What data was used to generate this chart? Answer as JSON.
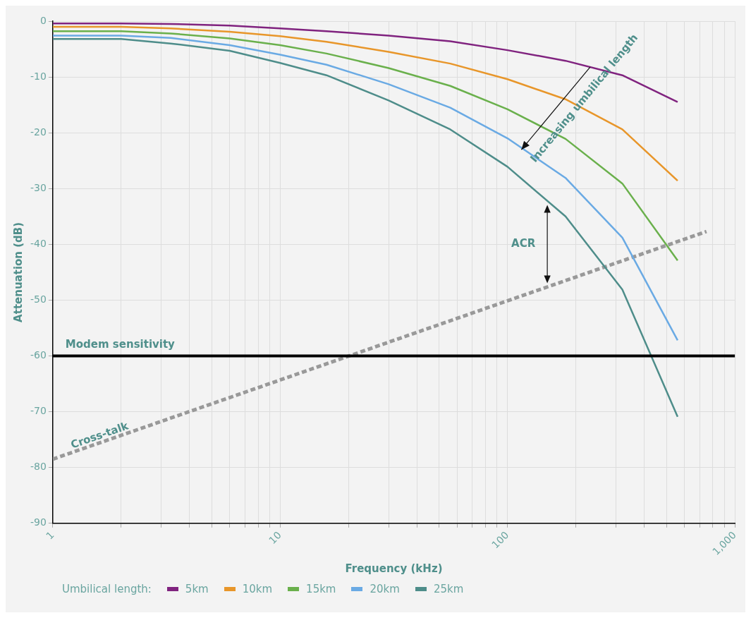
{
  "chart_data": {
    "type": "line",
    "xlabel": "Frequency (kHz)",
    "ylabel": "Attenuation (dB)",
    "legend_title": "Umbilical length:",
    "legend": "bottom",
    "log": "x",
    "grid": true,
    "x": [
      1,
      2,
      3.3,
      6,
      10,
      16,
      30,
      56,
      100,
      180,
      320,
      560
    ],
    "series": [
      {
        "name": "5km",
        "color": "#80237f",
        "values": [
          -0.4,
          -0.4,
          -0.5,
          -0.8,
          -1.3,
          -1.8,
          -2.6,
          -3.6,
          -5.2,
          -7.1,
          -9.7,
          -14.5
        ]
      },
      {
        "name": "10km",
        "color": "#e8962a",
        "values": [
          -1.0,
          -1.0,
          -1.3,
          -1.9,
          -2.7,
          -3.7,
          -5.5,
          -7.6,
          -10.4,
          -14,
          -19.4,
          -28.6
        ]
      },
      {
        "name": "15km",
        "color": "#6ab04c",
        "values": [
          -1.8,
          -1.8,
          -2.2,
          -3.1,
          -4.3,
          -5.8,
          -8.4,
          -11.6,
          -15.8,
          -21.1,
          -29.1,
          -42.9
        ]
      },
      {
        "name": "20km",
        "color": "#6aaae4",
        "values": [
          -2.6,
          -2.6,
          -3.0,
          -4.3,
          -6.0,
          -7.8,
          -11.3,
          -15.5,
          -21,
          -28.1,
          -38.8,
          -57.2
        ]
      },
      {
        "name": "25km",
        "color": "#4e8d8a",
        "values": [
          -3.2,
          -3.2,
          -4.0,
          -5.3,
          -7.5,
          -9.7,
          -14.2,
          -19.4,
          -26.1,
          -35,
          -48.1,
          -70.9
        ]
      },
      {
        "color": "#999999",
        "line_style": "dashed",
        "x": [
          1,
          750
        ],
        "values": [
          -78.5,
          -37.7
        ]
      }
    ],
    "xlim": [
      1,
      1000
    ],
    "xticks": [
      1,
      {
        "value": 2,
        "label": null
      },
      {
        "value": 3,
        "label": null
      },
      {
        "value": 4,
        "label": null
      },
      {
        "value": 5,
        "label": null
      },
      {
        "value": 6,
        "label": null
      },
      {
        "value": 7,
        "label": null
      },
      {
        "value": 8,
        "label": null
      },
      {
        "value": 9,
        "label": null
      },
      10,
      {
        "value": 20,
        "label": null
      },
      {
        "value": 30,
        "label": null
      },
      {
        "value": 40,
        "label": null
      },
      {
        "value": 50,
        "label": null
      },
      {
        "value": 60,
        "label": null
      },
      {
        "value": 70,
        "label": null
      },
      {
        "value": 80,
        "label": null
      },
      {
        "value": 90,
        "label": null
      },
      100,
      {
        "value": 200,
        "label": null
      },
      {
        "value": 300,
        "label": null
      },
      {
        "value": 400,
        "label": null
      },
      {
        "value": 500,
        "label": null
      },
      {
        "value": 600,
        "label": null
      },
      {
        "value": 700,
        "label": null
      },
      {
        "value": 800,
        "label": null
      },
      {
        "value": 900,
        "label": null
      },
      {
        "value": 1000,
        "label": "1,000"
      }
    ],
    "ylim": [
      -90,
      0
    ],
    "yticks": [
      -90,
      -80,
      -70,
      -60,
      -50,
      -40,
      -30,
      -20,
      -10,
      0
    ],
    "ref_lines": [
      {
        "axis": "y",
        "value": -60,
        "label": "Modem sensitivity",
        "color": "#000000"
      }
    ],
    "annotations": [
      "Increasing umbilical length",
      "ACR",
      "Cross-talk"
    ]
  }
}
